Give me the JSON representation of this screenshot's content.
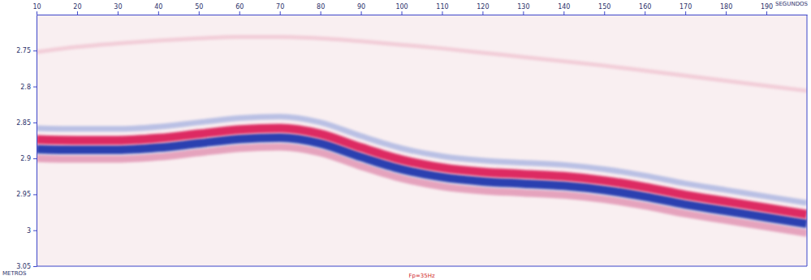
{
  "chart_data": {
    "type": "seismic",
    "x_label": "SEGUNDOS",
    "y_label": "METROS",
    "annotation": "Fp=35Hz",
    "x": [
      10,
      20,
      30,
      40,
      50,
      60,
      70,
      80,
      90,
      100,
      110,
      120,
      130,
      140,
      150,
      160,
      170,
      180,
      190,
      200
    ],
    "xlim": [
      10,
      200
    ],
    "xticks": [
      10,
      20,
      30,
      40,
      50,
      60,
      70,
      80,
      90,
      100,
      110,
      120,
      130,
      140,
      150,
      160,
      170,
      180,
      190
    ],
    "ylim": [
      2.7,
      3.05
    ],
    "yticks": [
      2.75,
      2.8,
      2.85,
      2.9,
      2.95,
      3,
      3.05
    ],
    "series": [
      {
        "color": "#f2cdd8",
        "values": [
          2.752,
          2.745,
          2.74,
          2.736,
          2.733,
          2.731,
          2.731,
          2.733,
          2.737,
          2.742,
          2.747,
          2.753,
          2.759,
          2.765,
          2.771,
          2.778,
          2.785,
          2.792,
          2.799,
          2.806
        ]
      },
      {
        "color": "#b9c0e4",
        "values": [
          2.858,
          2.859,
          2.859,
          2.856,
          2.85,
          2.844,
          2.842,
          2.85,
          2.869,
          2.886,
          2.897,
          2.903,
          2.906,
          2.909,
          2.915,
          2.924,
          2.935,
          2.944,
          2.953,
          2.962
        ]
      },
      {
        "color": "#e5a3bd",
        "values": [
          2.9,
          2.901,
          2.901,
          2.898,
          2.892,
          2.886,
          2.884,
          2.892,
          2.911,
          2.928,
          2.939,
          2.945,
          2.948,
          2.951,
          2.957,
          2.966,
          2.977,
          2.986,
          2.995,
          3.004
        ]
      },
      {
        "color": "#2b3fb0",
        "values": [
          2.887,
          2.888,
          2.888,
          2.885,
          2.879,
          2.873,
          2.871,
          2.879,
          2.898,
          2.915,
          2.926,
          2.932,
          2.935,
          2.938,
          2.944,
          2.953,
          2.964,
          2.973,
          2.982,
          2.991
        ]
      },
      {
        "color": "#dd2a62",
        "values": [
          2.874,
          2.875,
          2.875,
          2.872,
          2.866,
          2.86,
          2.858,
          2.866,
          2.885,
          2.902,
          2.913,
          2.919,
          2.922,
          2.925,
          2.931,
          2.94,
          2.951,
          2.96,
          2.969,
          2.978
        ]
      }
    ]
  }
}
